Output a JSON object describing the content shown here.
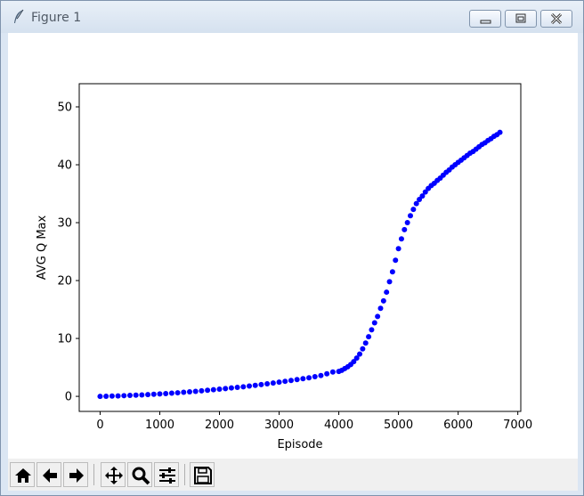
{
  "window": {
    "title": "Figure 1",
    "icon": "feather-icon",
    "controls": [
      "minimize-icon",
      "maximize-icon",
      "close-icon"
    ]
  },
  "toolbar": {
    "buttons": [
      {
        "name": "home",
        "icon": "home-icon"
      },
      {
        "name": "back",
        "icon": "arrow-left-icon"
      },
      {
        "name": "forward",
        "icon": "arrow-right-icon"
      },
      {
        "name": "pan",
        "icon": "move-icon"
      },
      {
        "name": "zoom",
        "icon": "magnifier-icon"
      },
      {
        "name": "configure-subplots",
        "icon": "sliders-icon"
      },
      {
        "name": "save",
        "icon": "floppy-disk-icon"
      }
    ]
  },
  "colors": {
    "marker": "#0000ff",
    "axes": "#000000",
    "background": "#ffffff"
  },
  "chart_data": {
    "type": "scatter",
    "xlabel": "Episode",
    "ylabel": "AVG Q Max",
    "xlim": [
      -350,
      7050
    ],
    "ylim": [
      -2.6,
      54
    ],
    "xticks": [
      0,
      1000,
      2000,
      3000,
      4000,
      5000,
      6000,
      7000
    ],
    "yticks": [
      0,
      10,
      20,
      30,
      40,
      50
    ],
    "grid": false,
    "legend": "none",
    "marker_color": "#0000ff",
    "series": [
      {
        "x": [
          0,
          100,
          200,
          300,
          400,
          500,
          600,
          700,
          800,
          900,
          1000,
          1100,
          1200,
          1300,
          1400,
          1500,
          1600,
          1700,
          1800,
          1900,
          2000,
          2100,
          2200,
          2300,
          2400,
          2500,
          2600,
          2700,
          2800,
          2900,
          3000,
          3100,
          3200,
          3300,
          3400,
          3500,
          3600,
          3700,
          3800,
          3900,
          4000,
          4050,
          4100,
          4150,
          4200,
          4250,
          4300,
          4350,
          4400,
          4450,
          4500,
          4550,
          4600,
          4650,
          4700,
          4750,
          4800,
          4850,
          4900,
          4950,
          5000,
          5050,
          5100,
          5150,
          5200,
          5250,
          5300,
          5350,
          5400,
          5450,
          5500,
          5550,
          5600,
          5650,
          5700,
          5750,
          5800,
          5850,
          5900,
          5950,
          6000,
          6050,
          6100,
          6150,
          6200,
          6250,
          6300,
          6350,
          6400,
          6450,
          6500,
          6550,
          6600,
          6650,
          6700
        ],
        "y": [
          0,
          0.02,
          0.05,
          0.08,
          0.12,
          0.16,
          0.2,
          0.25,
          0.3,
          0.36,
          0.42,
          0.48,
          0.55,
          0.62,
          0.7,
          0.78,
          0.86,
          0.95,
          1.05,
          1.15,
          1.25,
          1.35,
          1.45,
          1.55,
          1.65,
          1.78,
          1.9,
          2.03,
          2.16,
          2.3,
          2.45,
          2.6,
          2.75,
          2.9,
          3.05,
          3.2,
          3.4,
          3.6,
          3.9,
          4.2,
          4.3,
          4.5,
          4.8,
          5.1,
          5.5,
          6,
          6.6,
          7.3,
          8.2,
          9.2,
          10.3,
          11.5,
          12.7,
          13.8,
          15.2,
          16.5,
          18,
          19.8,
          21.5,
          23.5,
          25.5,
          27.2,
          28.8,
          30,
          31.2,
          32.3,
          33.3,
          34,
          34.6,
          35.3,
          35.9,
          36.4,
          36.8,
          37.3,
          37.7,
          38.2,
          38.7,
          39.1,
          39.6,
          40,
          40.4,
          40.8,
          41.2,
          41.6,
          42,
          42.3,
          42.7,
          43.1,
          43.5,
          43.8,
          44.2,
          44.5,
          44.9,
          45.2,
          45.6
        ]
      }
    ]
  }
}
